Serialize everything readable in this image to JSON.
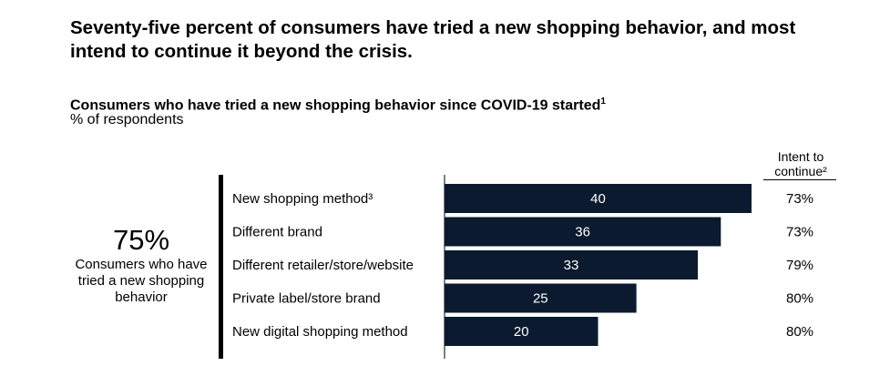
{
  "headline": "Seventy-five percent of consumers have tried a new shopping behavior, and most intend to continue it beyond the crisis.",
  "subtitle": "Consumers who have tried a new shopping behavior since COVID-19 started",
  "subtitle_footnote": "1",
  "unit_label": "% of respondents",
  "summary": {
    "value": "75%",
    "caption": "Consumers who have tried a new shopping behavior"
  },
  "intent_header": "Intent to continue²",
  "colors": {
    "bar": "#0b1a2e",
    "bar_text": "#ffffff"
  },
  "chart_data": {
    "type": "bar",
    "orientation": "horizontal",
    "categories": [
      "New shopping method³",
      "Different brand",
      "Different retailer/store/website",
      "Private label/store brand",
      "New digital shopping method"
    ],
    "values": [
      40,
      36,
      33,
      25,
      20
    ],
    "intent_to_continue": [
      "73%",
      "73%",
      "79%",
      "80%",
      "80%"
    ],
    "xlim": [
      0,
      40
    ],
    "grid": false
  }
}
